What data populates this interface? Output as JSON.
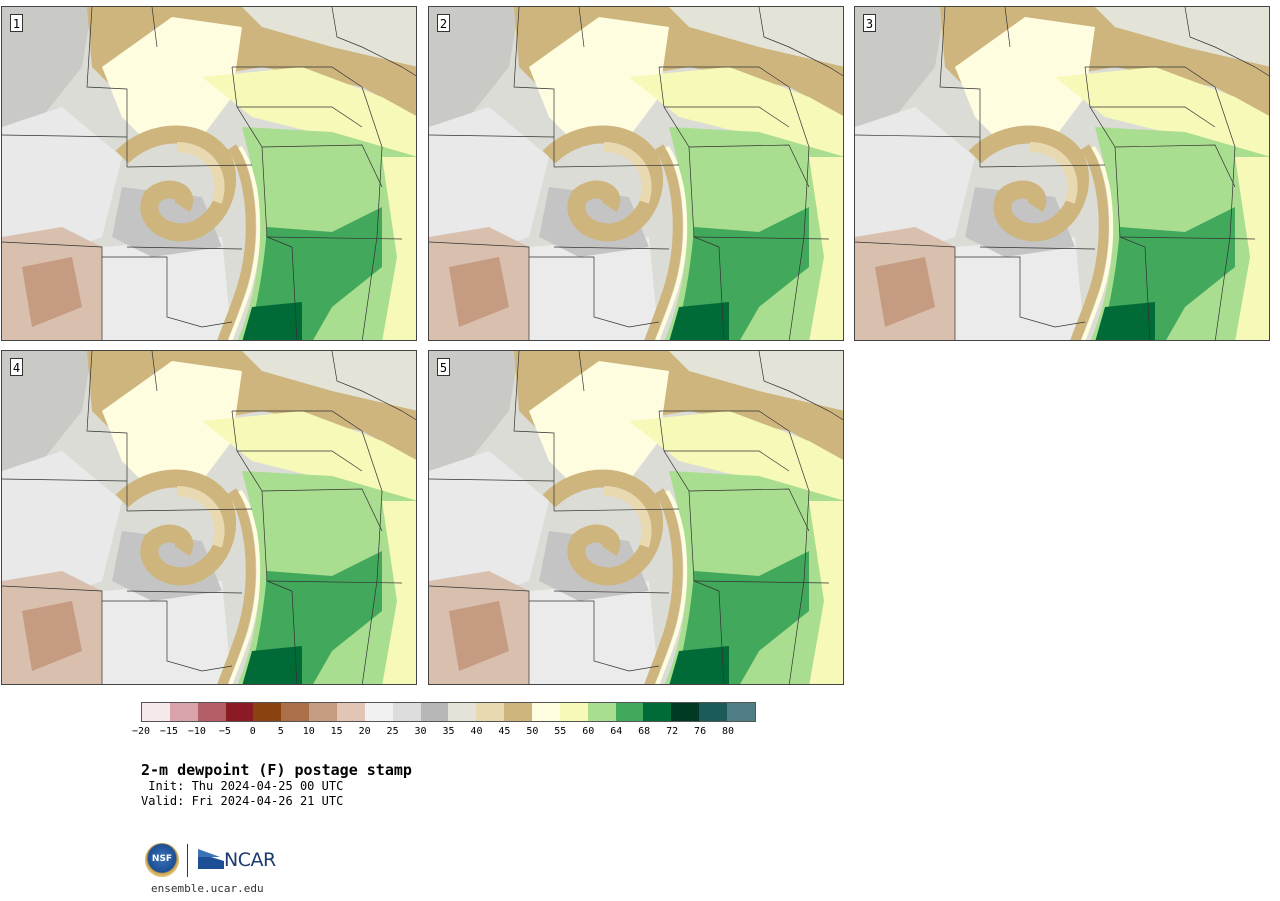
{
  "panels": [
    {
      "label": "1"
    },
    {
      "label": "2"
    },
    {
      "label": "3"
    },
    {
      "label": "4"
    },
    {
      "label": "5"
    }
  ],
  "colorbar": {
    "colors": [
      "#f6e9ec",
      "#d8a3ab",
      "#b45e68",
      "#8c1a24",
      "#8a4210",
      "#ab6f4a",
      "#c59b82",
      "#e2c5b4",
      "#f1f1f1",
      "#dcdcdc",
      "#b7b7b7",
      "#e3e3d8",
      "#e9d9b0",
      "#cdb57d",
      "#fffde0",
      "#f6f9b8",
      "#a9dd8f",
      "#41a85c",
      "#006b37",
      "#003a22",
      "#1d5a5a",
      "#507d86"
    ],
    "tick_labels": [
      "−20",
      "−15",
      "−10",
      "−5",
      "0",
      "5",
      "10",
      "15",
      "20",
      "25",
      "30",
      "35",
      "40",
      "45",
      "50",
      "55",
      "60",
      "64",
      "68",
      "72",
      "76",
      "80"
    ]
  },
  "title": "2-m dewpoint (F) postage stamp",
  "init": " Init: Thu 2024-04-25 00 UTC",
  "valid": "Valid: Fri 2024-04-26 21 UTC",
  "logos": {
    "nsf": "NSF",
    "ncar": "NCAR"
  },
  "site": "ensemble.ucar.edu"
}
